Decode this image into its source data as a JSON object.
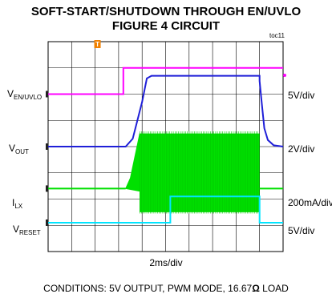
{
  "title_line1": "SOFT-START/SHUTDOWN THROUGH EN/UVLO",
  "title_line2": "FIGURE 4 CIRCUIT",
  "toc": "toc11",
  "trigger_marker": "T",
  "colors": {
    "en_uvlo": "#ff00ff",
    "vout": "#1f1fd8",
    "ilx": "#00e000",
    "reset": "#00e5ff",
    "grid": "#000000"
  },
  "chart_data": {
    "type": "line",
    "title": "SOFT-START/SHUTDOWN THROUGH EN/UVLO FIGURE 4 CIRCUIT",
    "xlabel": "2ms/div",
    "x_divisions": 10,
    "y_divisions": 8,
    "grid": true,
    "channels": [
      {
        "label_main": "V",
        "label_sub": "EN/UVLO",
        "scale": "5V/div",
        "color": "#ff00ff",
        "ground_div": 6.0,
        "points": [
          [
            0,
            0
          ],
          [
            3.2,
            0
          ],
          [
            3.2,
            1.0
          ],
          [
            10,
            1.0
          ]
        ]
      },
      {
        "label_main": "V",
        "label_sub": "OUT",
        "scale": "2V/div",
        "color": "#1f1fd8",
        "ground_div": 4.0,
        "points": [
          [
            0,
            0
          ],
          [
            3.3,
            0
          ],
          [
            3.6,
            0.3
          ],
          [
            4.0,
            1.7
          ],
          [
            4.2,
            2.6
          ],
          [
            4.4,
            2.7
          ],
          [
            9.0,
            2.7
          ],
          [
            9.0,
            2.5
          ],
          [
            9.1,
            1.6
          ],
          [
            9.2,
            0.7
          ],
          [
            9.35,
            0.25
          ],
          [
            9.6,
            0.05
          ],
          [
            10,
            0
          ]
        ]
      },
      {
        "label_main": "I",
        "label_sub": "LX",
        "scale": "200mA/div",
        "color": "#00e000",
        "ground_div": 2.4,
        "burst": {
          "start": 3.3,
          "ramp_end": 3.9,
          "end": 9.0,
          "upper": 2.1,
          "lower": 0.9
        }
      },
      {
        "label_main": "V",
        "label_sub": "RESET",
        "scale": "5V/div",
        "color": "#00e5ff",
        "ground_div": 1.1,
        "points": [
          [
            0,
            0
          ],
          [
            5.2,
            0
          ],
          [
            5.2,
            1.0
          ],
          [
            9.0,
            1.0
          ],
          [
            9.0,
            0
          ],
          [
            10,
            0
          ]
        ]
      }
    ]
  },
  "conditions_parts": [
    "CONDITIONS: 5V OUTPUT, PWM MODE, 16.67",
    "Ω",
    " LOAD"
  ]
}
